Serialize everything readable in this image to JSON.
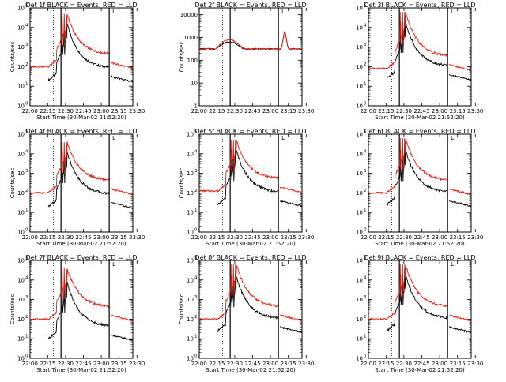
{
  "colors": {
    "events": "#000000",
    "lld": "#e8190c"
  },
  "chart_data": [
    {
      "type": "line",
      "title": "Det 1f BLACK = Events, RED = LLD",
      "ylabel": "Counts/sec",
      "xlabel": "Start Time (30-Mar-02 21:52:20)",
      "x_tick_labels": [
        "22:00",
        "22:15",
        "22:30",
        "22:45",
        "23:00",
        "23:15",
        "23:30"
      ],
      "y_tick_labels": [
        "10^0",
        "10^1",
        "10^2",
        "10^3",
        "10^4",
        "10^5"
      ],
      "ylim_log10": [
        0,
        5
      ],
      "series": [
        {
          "name": "Events",
          "color": "#000000",
          "peak_log10": 4.2,
          "base_log10": 1.3
        },
        {
          "name": "LLD",
          "color": "#e8190c",
          "peak_log10": 4.7,
          "base_log10": 2.0
        }
      ]
    },
    {
      "type": "line",
      "title": "Det 2f BLACK = Events, RED = LLD",
      "ylabel": "Counts/sec",
      "xlabel": "",
      "x_tick_labels": [
        "22:00",
        "22:15",
        "22:30",
        "22:45",
        "23:00",
        "23:15",
        "23:30"
      ],
      "y_tick_labels": [
        "1",
        "10",
        "100",
        "1000",
        "10000"
      ],
      "ylim_log10": [
        0,
        4.3
      ],
      "series": [
        {
          "name": "Events",
          "color": "#000000",
          "peak_log10": 3.1,
          "base_log10": 2.5
        },
        {
          "name": "LLD",
          "color": "#e8190c",
          "peak_log10": 3.2,
          "base_log10": 2.5
        }
      ]
    },
    {
      "type": "line",
      "title": "Det 3f BLACK = Events, RED = LLD",
      "ylabel": "",
      "xlabel": "Start Time (30-Mar-02 21:52:20)",
      "x_tick_labels": [
        "22:00",
        "22:15",
        "22:30",
        "22:45",
        "23:00",
        "23:15",
        "23:30"
      ],
      "y_tick_labels": [
        "10^0",
        "10^1",
        "10^2",
        "10^3",
        "10^4",
        "10^5"
      ],
      "ylim_log10": [
        0,
        5
      ],
      "series": [
        {
          "name": "Events",
          "color": "#000000",
          "peak_log10": 4.3,
          "base_log10": 1.4
        },
        {
          "name": "LLD",
          "color": "#e8190c",
          "peak_log10": 4.8,
          "base_log10": 1.9
        }
      ]
    },
    {
      "type": "line",
      "title": "Det 4f BLACK = Events, RED = LLD",
      "ylabel": "Counts/sec",
      "xlabel": "Start Time (30-Mar-02 21:52:20)",
      "x_tick_labels": [
        "22:00",
        "22:15",
        "22:30",
        "22:45",
        "23:00",
        "23:15",
        "23:30"
      ],
      "y_tick_labels": [
        "10^0",
        "10^1",
        "10^2",
        "10^3",
        "10^4",
        "10^5"
      ],
      "ylim_log10": [
        0,
        5
      ],
      "series": [
        {
          "name": "Events",
          "color": "#000000",
          "peak_log10": 4.1,
          "base_log10": 1.3
        },
        {
          "name": "LLD",
          "color": "#e8190c",
          "peak_log10": 4.6,
          "base_log10": 2.0
        }
      ]
    },
    {
      "type": "line",
      "title": "Det 5f BLACK = Events, RED = LLD",
      "ylabel": "Counts/sec",
      "xlabel": "Start Time (30-Mar-02 21:52:20)",
      "x_tick_labels": [
        "22:00",
        "22:15",
        "22:30",
        "22:45",
        "23:00",
        "23:15",
        "23:30"
      ],
      "y_tick_labels": [
        "10^0",
        "10^1",
        "10^2",
        "10^3",
        "10^4",
        "10^5"
      ],
      "ylim_log10": [
        0,
        5
      ],
      "series": [
        {
          "name": "Events",
          "color": "#000000",
          "peak_log10": 4.2,
          "base_log10": 1.4
        },
        {
          "name": "LLD",
          "color": "#e8190c",
          "peak_log10": 4.7,
          "base_log10": 2.1
        }
      ]
    },
    {
      "type": "line",
      "title": "Det 6f BLACK = Events, RED = LLD",
      "ylabel": "",
      "xlabel": "Start Time (30-Mar-02 21:52:20)",
      "x_tick_labels": [
        "22:00",
        "22:15",
        "22:30",
        "22:45",
        "23:00",
        "23:15",
        "23:30"
      ],
      "y_tick_labels": [
        "10^0",
        "10^1",
        "10^2",
        "10^3",
        "10^4",
        "10^5"
      ],
      "ylim_log10": [
        0,
        5
      ],
      "series": [
        {
          "name": "Events",
          "color": "#000000",
          "peak_log10": 4.2,
          "base_log10": 1.4
        },
        {
          "name": "LLD",
          "color": "#e8190c",
          "peak_log10": 4.8,
          "base_log10": 2.0
        }
      ]
    },
    {
      "type": "line",
      "title": "Det 7f BLACK = Events, RED = LLD",
      "ylabel": "Counts/sec",
      "xlabel": "Start Time (30-Mar-02 21:52:20)",
      "x_tick_labels": [
        "22:00",
        "22:15",
        "22:30",
        "22:45",
        "23:00",
        "23:15",
        "23:30"
      ],
      "y_tick_labels": [
        "10^0",
        "10^1",
        "10^2",
        "10^3",
        "10^4",
        "10^5"
      ],
      "ylim_log10": [
        0,
        5
      ],
      "series": [
        {
          "name": "Events",
          "color": "#000000",
          "peak_log10": 3.9,
          "base_log10": 1.0
        },
        {
          "name": "LLD",
          "color": "#e8190c",
          "peak_log10": 4.6,
          "base_log10": 2.0
        }
      ]
    },
    {
      "type": "line",
      "title": "Det 8f BLACK = Events, RED = LLD",
      "ylabel": "Counts/sec",
      "xlabel": "Start Time (30-Mar-02 21:52:20)",
      "x_tick_labels": [
        "22:00",
        "22:15",
        "22:30",
        "22:45",
        "23:00",
        "23:15",
        "23:30"
      ],
      "y_tick_labels": [
        "10^0",
        "10^1",
        "10^2",
        "10^3",
        "10^4",
        "10^5"
      ],
      "ylim_log10": [
        0,
        5
      ],
      "series": [
        {
          "name": "Events",
          "color": "#000000",
          "peak_log10": 4.2,
          "base_log10": 1.4
        },
        {
          "name": "LLD",
          "color": "#e8190c",
          "peak_log10": 4.8,
          "base_log10": 2.0
        }
      ]
    },
    {
      "type": "line",
      "title": "Det 9f BLACK = Events, RED = LLD",
      "ylabel": "",
      "xlabel": "Start Time (30-Mar-02 21:52:20)",
      "x_tick_labels": [
        "22:00",
        "22:15",
        "22:30",
        "22:45",
        "23:00",
        "23:15",
        "23:30"
      ],
      "y_tick_labels": [
        "10^0",
        "10^1",
        "10^2",
        "10^3",
        "10^4",
        "10^5"
      ],
      "ylim_log10": [
        0,
        5
      ],
      "series": [
        {
          "name": "Events",
          "color": "#000000",
          "peak_log10": 4.3,
          "base_log10": 1.4
        },
        {
          "name": "LLD",
          "color": "#e8190c",
          "peak_log10": 4.8,
          "base_log10": 2.0
        }
      ]
    }
  ]
}
